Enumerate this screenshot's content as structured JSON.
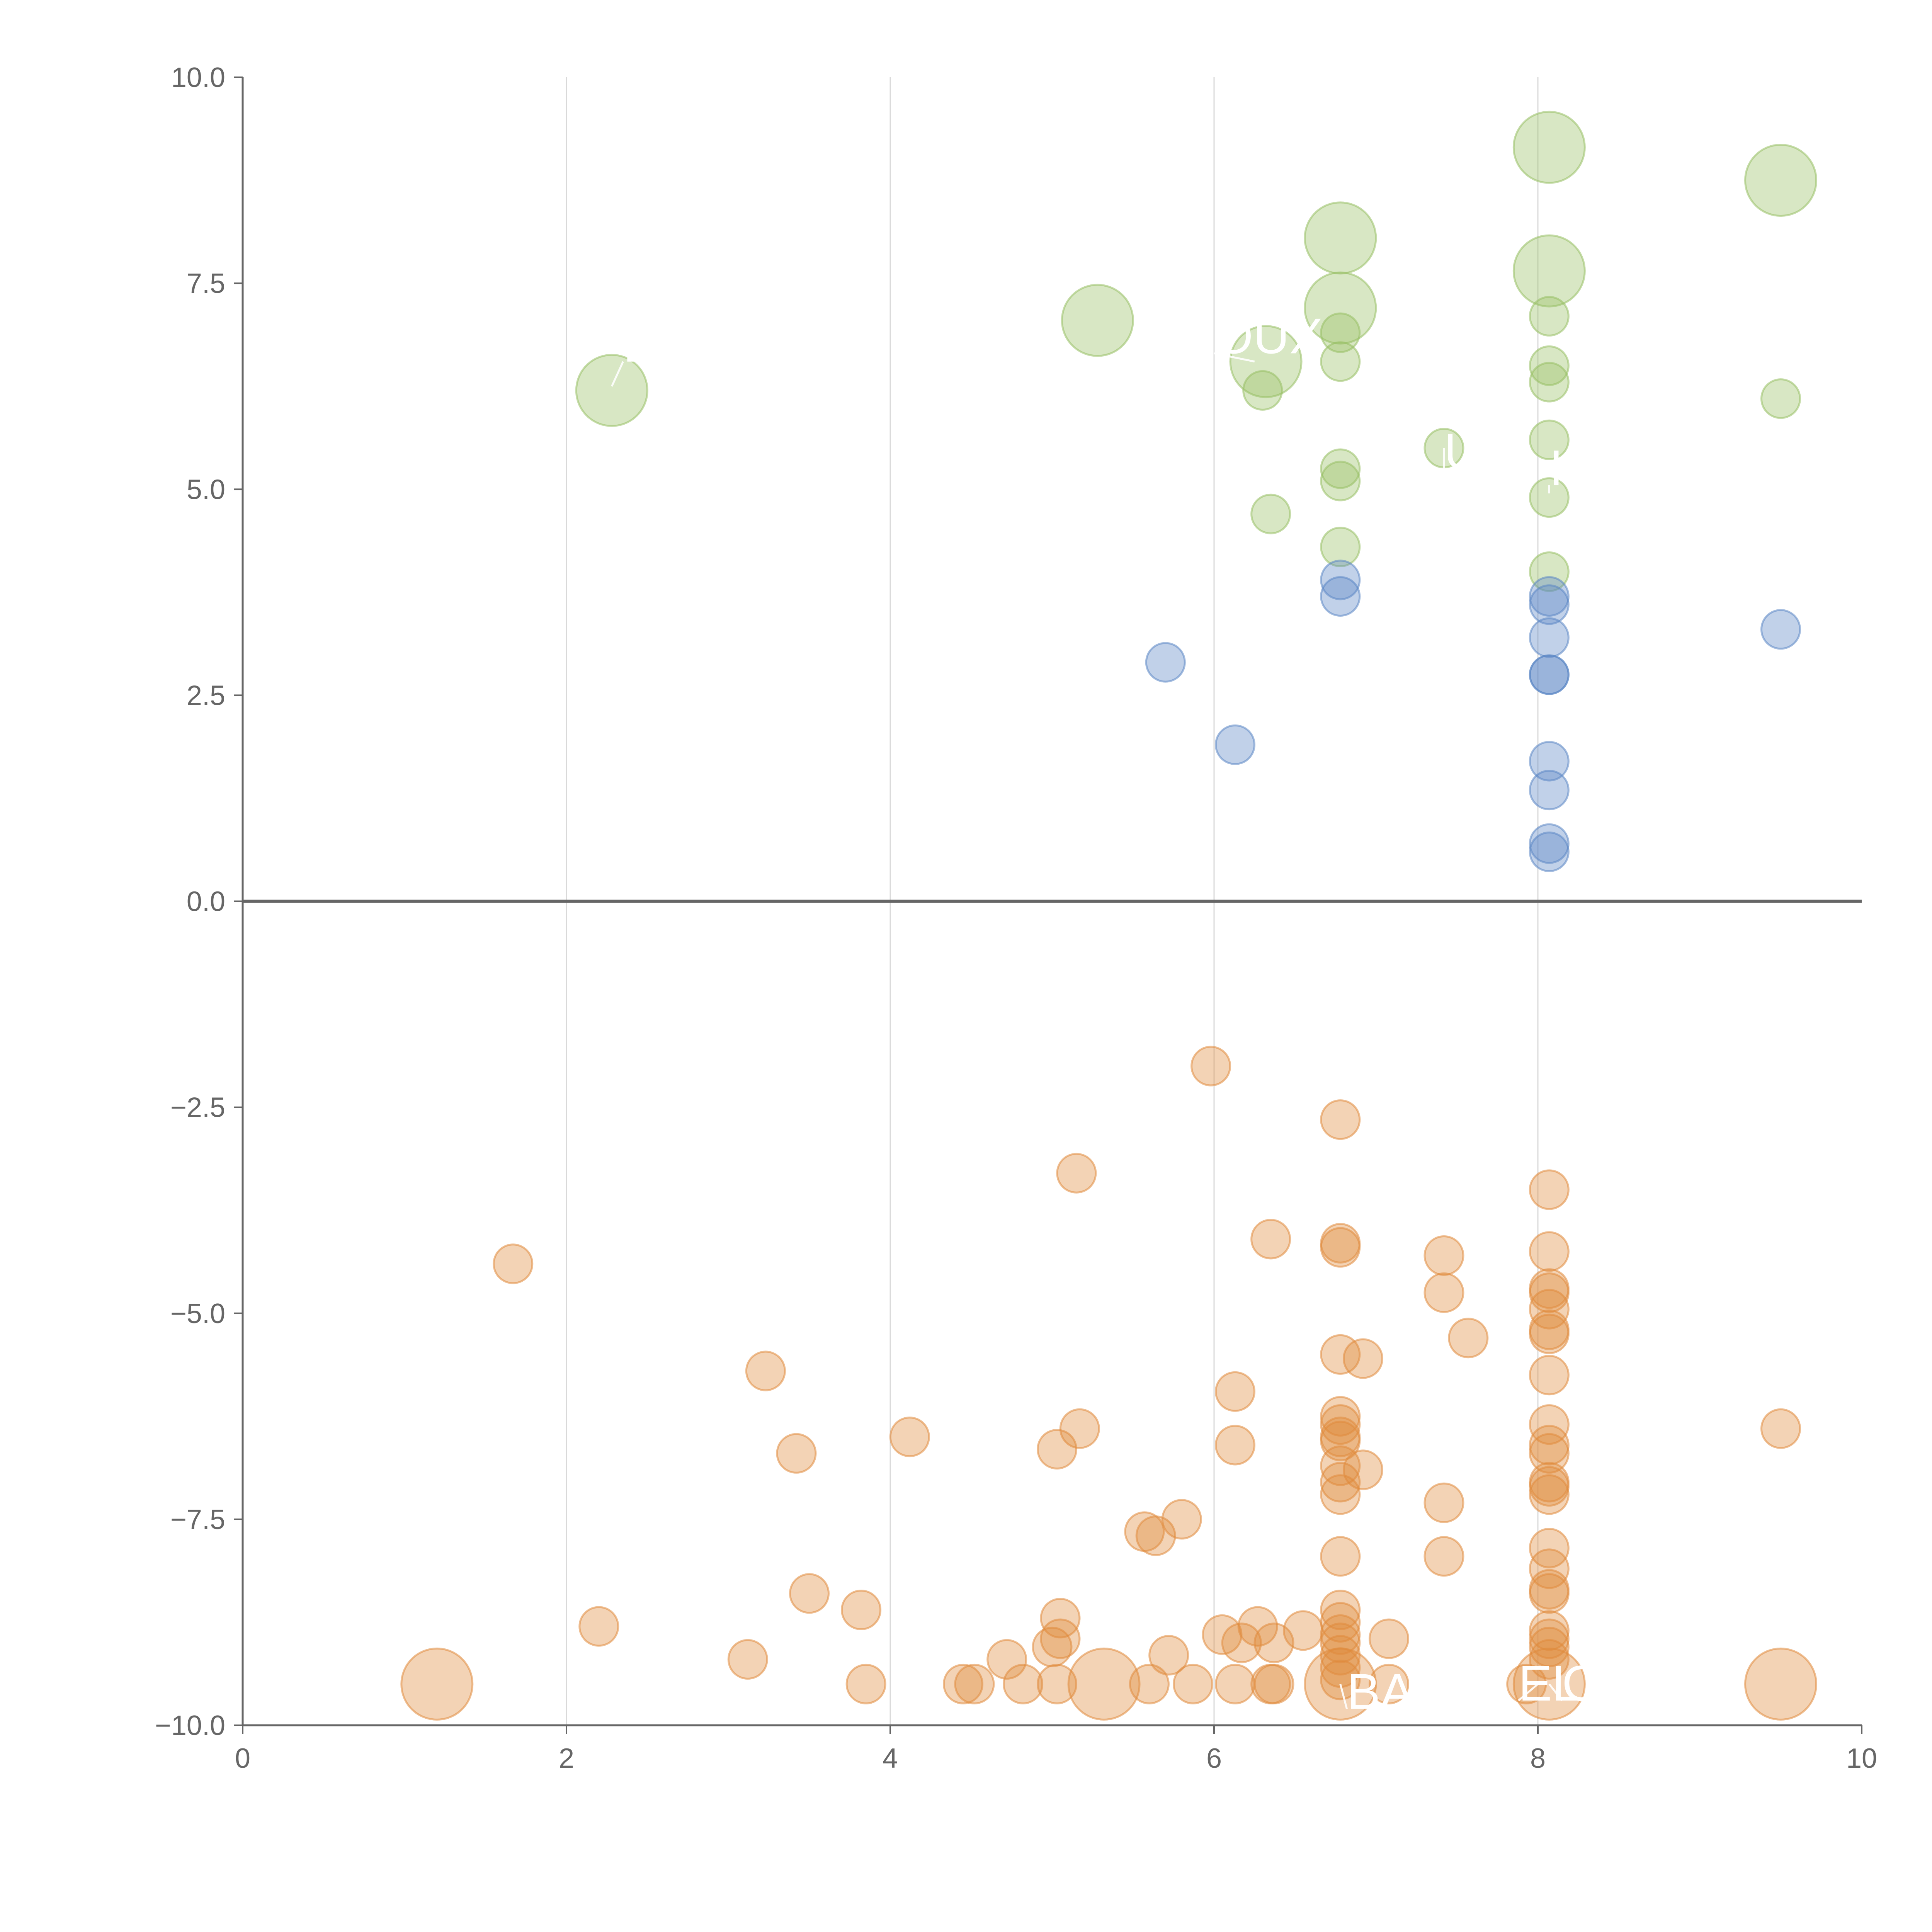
{
  "chart_data": {
    "type": "scatter",
    "title": "",
    "xlabel": "",
    "ylabel": "",
    "xlim": [
      0,
      10
    ],
    "ylim": [
      -10,
      10
    ],
    "x_ticks": [
      "0",
      "2",
      "4",
      "6",
      "8",
      "10"
    ],
    "y_ticks": [
      "10.0",
      "7.5",
      "5.0",
      "2.5",
      "0.0",
      "−2.5",
      "−5.0",
      "−7.5",
      "−10.0"
    ],
    "grid": "vertical only",
    "legend": "none",
    "colors": {
      "green": "#98bf64",
      "blue": "#5b86c4",
      "orange": "#e08b3c"
    },
    "series": [
      {
        "color": "#98bf64",
        "points": [
          {
            "x": 2.28,
            "y": 6.2,
            "r": "large"
          },
          {
            "x": 5.28,
            "y": 7.05,
            "r": "large"
          },
          {
            "x": 6.32,
            "y": 6.55,
            "r": "large"
          },
          {
            "x": 6.3,
            "y": 6.2,
            "r": "small"
          },
          {
            "x": 6.35,
            "y": 4.7,
            "r": "small"
          },
          {
            "x": 6.78,
            "y": 8.05,
            "r": "large"
          },
          {
            "x": 6.78,
            "y": 7.2,
            "r": "large"
          },
          {
            "x": 6.78,
            "y": 6.9,
            "r": "small"
          },
          {
            "x": 6.78,
            "y": 6.55,
            "r": "small"
          },
          {
            "x": 6.78,
            "y": 5.25,
            "r": "small"
          },
          {
            "x": 6.78,
            "y": 5.1,
            "r": "small"
          },
          {
            "x": 6.78,
            "y": 4.3,
            "r": "small"
          },
          {
            "x": 7.42,
            "y": 5.5,
            "r": "small"
          },
          {
            "x": 8.07,
            "y": 9.15,
            "r": "large"
          },
          {
            "x": 8.07,
            "y": 7.65,
            "r": "large"
          },
          {
            "x": 8.07,
            "y": 7.1,
            "r": "small"
          },
          {
            "x": 8.07,
            "y": 6.5,
            "r": "small"
          },
          {
            "x": 8.07,
            "y": 6.3,
            "r": "small"
          },
          {
            "x": 8.07,
            "y": 5.6,
            "r": "small"
          },
          {
            "x": 8.07,
            "y": 4.9,
            "r": "small"
          },
          {
            "x": 8.07,
            "y": 4.0,
            "r": "small"
          },
          {
            "x": 9.5,
            "y": 8.75,
            "r": "large"
          },
          {
            "x": 9.5,
            "y": 6.1,
            "r": "small"
          }
        ]
      },
      {
        "color": "#5b86c4",
        "points": [
          {
            "x": 5.7,
            "y": 2.9,
            "r": "small"
          },
          {
            "x": 6.13,
            "y": 1.9,
            "r": "small"
          },
          {
            "x": 6.78,
            "y": 3.9,
            "r": "small"
          },
          {
            "x": 6.78,
            "y": 3.7,
            "r": "small"
          },
          {
            "x": 8.07,
            "y": 3.7,
            "r": "small"
          },
          {
            "x": 8.07,
            "y": 3.6,
            "r": "small"
          },
          {
            "x": 8.07,
            "y": 3.2,
            "r": "small"
          },
          {
            "x": 8.07,
            "y": 2.75,
            "r": "small"
          },
          {
            "x": 8.07,
            "y": 2.75,
            "r": "small"
          },
          {
            "x": 8.07,
            "y": 1.7,
            "r": "small"
          },
          {
            "x": 8.07,
            "y": 1.35,
            "r": "small"
          },
          {
            "x": 8.07,
            "y": 0.7,
            "r": "small"
          },
          {
            "x": 8.07,
            "y": 0.6,
            "r": "small"
          },
          {
            "x": 9.5,
            "y": 3.3,
            "r": "small"
          }
        ]
      },
      {
        "color": "#e08b3c",
        "points": [
          {
            "x": 1.2,
            "y": -9.5,
            "r": "large"
          },
          {
            "x": 1.67,
            "y": -4.4,
            "r": "small"
          },
          {
            "x": 2.2,
            "y": -8.8,
            "r": "small"
          },
          {
            "x": 3.12,
            "y": -9.2,
            "r": "small"
          },
          {
            "x": 3.23,
            "y": -5.7,
            "r": "small"
          },
          {
            "x": 3.42,
            "y": -6.7,
            "r": "small"
          },
          {
            "x": 3.5,
            "y": -8.4,
            "r": "small"
          },
          {
            "x": 3.82,
            "y": -8.6,
            "r": "small"
          },
          {
            "x": 3.85,
            "y": -9.5,
            "r": "small"
          },
          {
            "x": 4.12,
            "y": -6.5,
            "r": "small"
          },
          {
            "x": 4.45,
            "y": -9.5,
            "r": "small"
          },
          {
            "x": 4.52,
            "y": -9.5,
            "r": "small"
          },
          {
            "x": 4.72,
            "y": -9.2,
            "r": "small"
          },
          {
            "x": 4.82,
            "y": -9.5,
            "r": "small"
          },
          {
            "x": 5.0,
            "y": -9.05,
            "r": "small"
          },
          {
            "x": 5.03,
            "y": -6.65,
            "r": "small"
          },
          {
            "x": 5.03,
            "y": -9.5,
            "r": "small"
          },
          {
            "x": 5.05,
            "y": -8.7,
            "r": "small"
          },
          {
            "x": 5.05,
            "y": -8.95,
            "r": "small"
          },
          {
            "x": 5.15,
            "y": -3.3,
            "r": "small"
          },
          {
            "x": 5.17,
            "y": -6.4,
            "r": "small"
          },
          {
            "x": 5.32,
            "y": -9.5,
            "r": "large"
          },
          {
            "x": 5.57,
            "y": -7.65,
            "r": "small"
          },
          {
            "x": 5.6,
            "y": -9.5,
            "r": "small"
          },
          {
            "x": 5.64,
            "y": -7.7,
            "r": "small"
          },
          {
            "x": 5.72,
            "y": -9.15,
            "r": "small"
          },
          {
            "x": 5.8,
            "y": -7.5,
            "r": "small"
          },
          {
            "x": 5.87,
            "y": -9.5,
            "r": "small"
          },
          {
            "x": 5.98,
            "y": -2.0,
            "r": "small"
          },
          {
            "x": 6.05,
            "y": -8.9,
            "r": "small"
          },
          {
            "x": 6.13,
            "y": -5.95,
            "r": "small"
          },
          {
            "x": 6.13,
            "y": -6.6,
            "r": "small"
          },
          {
            "x": 6.13,
            "y": -9.5,
            "r": "small"
          },
          {
            "x": 6.17,
            "y": -9.0,
            "r": "small"
          },
          {
            "x": 6.27,
            "y": -8.8,
            "r": "small"
          },
          {
            "x": 6.35,
            "y": -4.1,
            "r": "small"
          },
          {
            "x": 6.35,
            "y": -9.5,
            "r": "small"
          },
          {
            "x": 6.37,
            "y": -9.5,
            "r": "small"
          },
          {
            "x": 6.37,
            "y": -9.0,
            "r": "small"
          },
          {
            "x": 6.55,
            "y": -8.85,
            "r": "small"
          },
          {
            "x": 6.78,
            "y": -2.65,
            "r": "small"
          },
          {
            "x": 6.78,
            "y": -4.15,
            "r": "small"
          },
          {
            "x": 6.78,
            "y": -4.2,
            "r": "small"
          },
          {
            "x": 6.78,
            "y": -5.5,
            "r": "small"
          },
          {
            "x": 6.78,
            "y": -6.25,
            "r": "small"
          },
          {
            "x": 6.78,
            "y": -6.35,
            "r": "small"
          },
          {
            "x": 6.78,
            "y": -6.5,
            "r": "small"
          },
          {
            "x": 6.78,
            "y": -6.55,
            "r": "small"
          },
          {
            "x": 6.78,
            "y": -6.85,
            "r": "small"
          },
          {
            "x": 6.78,
            "y": -7.05,
            "r": "small"
          },
          {
            "x": 6.78,
            "y": -7.2,
            "r": "small"
          },
          {
            "x": 6.78,
            "y": -7.95,
            "r": "small"
          },
          {
            "x": 6.78,
            "y": -8.6,
            "r": "small"
          },
          {
            "x": 6.78,
            "y": -8.75,
            "r": "small"
          },
          {
            "x": 6.78,
            "y": -8.9,
            "r": "small"
          },
          {
            "x": 6.78,
            "y": -9.0,
            "r": "small"
          },
          {
            "x": 6.78,
            "y": -9.15,
            "r": "small"
          },
          {
            "x": 6.78,
            "y": -9.3,
            "r": "small"
          },
          {
            "x": 6.78,
            "y": -9.45,
            "r": "small"
          },
          {
            "x": 6.78,
            "y": -9.5,
            "r": "large"
          },
          {
            "x": 6.92,
            "y": -5.55,
            "r": "small"
          },
          {
            "x": 6.92,
            "y": -6.9,
            "r": "small"
          },
          {
            "x": 7.08,
            "y": -8.95,
            "r": "small"
          },
          {
            "x": 7.08,
            "y": -9.5,
            "r": "small"
          },
          {
            "x": 7.42,
            "y": -4.3,
            "r": "small"
          },
          {
            "x": 7.42,
            "y": -4.75,
            "r": "small"
          },
          {
            "x": 7.42,
            "y": -7.3,
            "r": "small"
          },
          {
            "x": 7.42,
            "y": -7.95,
            "r": "small"
          },
          {
            "x": 7.57,
            "y": -5.3,
            "r": "small"
          },
          {
            "x": 7.93,
            "y": -9.5,
            "r": "small"
          },
          {
            "x": 8.07,
            "y": -3.5,
            "r": "small"
          },
          {
            "x": 8.07,
            "y": -4.25,
            "r": "small"
          },
          {
            "x": 8.07,
            "y": -4.7,
            "r": "small"
          },
          {
            "x": 8.07,
            "y": -4.75,
            "r": "small"
          },
          {
            "x": 8.07,
            "y": -4.95,
            "r": "small"
          },
          {
            "x": 8.07,
            "y": -5.2,
            "r": "small"
          },
          {
            "x": 8.07,
            "y": -5.25,
            "r": "small"
          },
          {
            "x": 8.07,
            "y": -5.75,
            "r": "small"
          },
          {
            "x": 8.07,
            "y": -6.35,
            "r": "small"
          },
          {
            "x": 8.07,
            "y": -6.6,
            "r": "small"
          },
          {
            "x": 8.07,
            "y": -6.7,
            "r": "small"
          },
          {
            "x": 8.07,
            "y": -7.05,
            "r": "small"
          },
          {
            "x": 8.07,
            "y": -7.1,
            "r": "small"
          },
          {
            "x": 8.07,
            "y": -7.2,
            "r": "small"
          },
          {
            "x": 8.07,
            "y": -7.85,
            "r": "small"
          },
          {
            "x": 8.07,
            "y": -8.1,
            "r": "small"
          },
          {
            "x": 8.07,
            "y": -8.35,
            "r": "small"
          },
          {
            "x": 8.07,
            "y": -8.4,
            "r": "small"
          },
          {
            "x": 8.07,
            "y": -8.85,
            "r": "small"
          },
          {
            "x": 8.07,
            "y": -8.95,
            "r": "small"
          },
          {
            "x": 8.07,
            "y": -9.05,
            "r": "small"
          },
          {
            "x": 8.07,
            "y": -9.2,
            "r": "small"
          },
          {
            "x": 8.07,
            "y": -9.5,
            "r": "large"
          },
          {
            "x": 9.5,
            "y": -6.4,
            "r": "small"
          },
          {
            "x": 9.5,
            "y": -9.5,
            "r": "large"
          }
        ]
      }
    ],
    "labels": [
      {
        "text": "L",
        "x": 2.35,
        "y": 6.55,
        "anchor_x": 2.28,
        "anchor_y": 6.25
      },
      {
        "text": "OUX",
        "x": 6.0,
        "y": 6.65,
        "anchor_x": 6.25,
        "anchor_y": 6.55
      },
      {
        "text": "U",
        "x": 7.42,
        "y": 5.25,
        "anchor_x": 7.42,
        "anchor_y": 5.5
      },
      {
        "text": "I",
        "x": 8.07,
        "y": 5.05,
        "anchor_x": 8.07,
        "anchor_y": 4.95
      },
      {
        "text": "BA",
        "x": 6.82,
        "y": -9.8,
        "anchor_x": 6.78,
        "anchor_y": -9.5
      },
      {
        "text": "EL",
        "x": 7.88,
        "y": -9.7,
        "anchor_x": 8.0,
        "anchor_y": -9.5
      },
      {
        "text": "O",
        "x": 8.15,
        "y": -9.7,
        "anchor_x": 8.07,
        "anchor_y": -9.5
      }
    ]
  }
}
